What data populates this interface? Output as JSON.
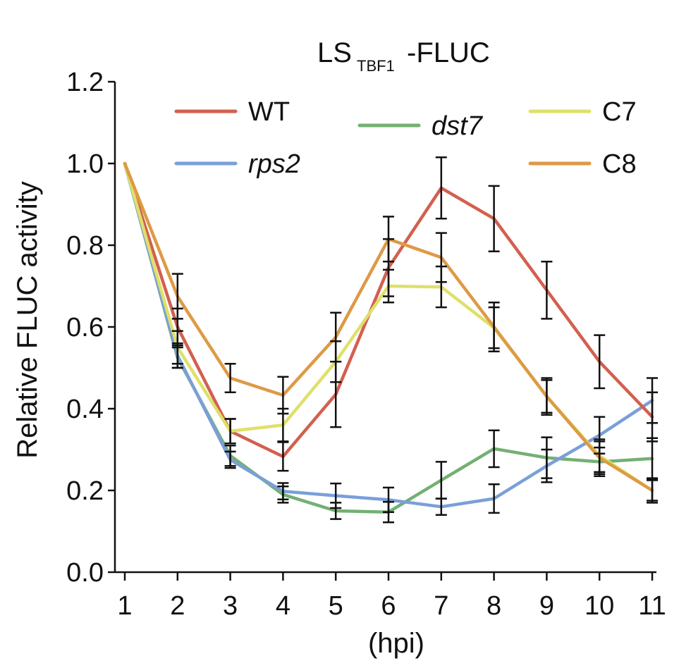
{
  "chart_data": {
    "type": "line",
    "title": {
      "main": "LS",
      "subscript": "TBF1",
      "suffix": "-FLUC"
    },
    "xlabel": "(hpi)",
    "ylabel": "Relative FLUC activity",
    "x": [
      1,
      2,
      3,
      4,
      5,
      6,
      7,
      8,
      9,
      10,
      11
    ],
    "x_ticks": [
      "1",
      "2",
      "3",
      "4",
      "5",
      "6",
      "7",
      "8",
      "9",
      "10",
      "11"
    ],
    "ylim": [
      0,
      1.2
    ],
    "y_ticks": [
      "0.0",
      "0.2",
      "0.4",
      "0.6",
      "0.8",
      "1.0",
      "1.2"
    ],
    "y_tick_values": [
      0,
      0.2,
      0.4,
      0.6,
      0.8,
      1.0,
      1.2
    ],
    "grid": false,
    "series": [
      {
        "name": "WT",
        "italic": false,
        "color": "#d2604f",
        "values": [
          1.0,
          0.6,
          0.345,
          0.283,
          0.435,
          0.745,
          0.94,
          0.865,
          0.69,
          0.515,
          0.38
        ],
        "errors": [
          0.0,
          0.045,
          0.03,
          0.035,
          0.08,
          0.07,
          0.075,
          0.08,
          0.07,
          0.065,
          0.06
        ]
      },
      {
        "name": "rps2",
        "italic": true,
        "color": "#7a9fd9",
        "values": [
          1.0,
          0.53,
          0.275,
          0.198,
          0.187,
          0.177,
          0.16,
          0.18,
          0.26,
          0.335,
          0.42
        ],
        "errors": [
          0.0,
          0.03,
          0.02,
          0.02,
          0.03,
          0.03,
          0.02,
          0.035,
          0.04,
          0.045,
          0.055
        ]
      },
      {
        "name": "dst7",
        "italic": true,
        "color": "#73b073",
        "values": [
          1.0,
          0.525,
          0.285,
          0.19,
          0.15,
          0.147,
          0.225,
          0.302,
          0.28,
          0.27,
          0.278
        ],
        "errors": [
          0.0,
          0.025,
          0.025,
          0.02,
          0.02,
          0.025,
          0.045,
          0.045,
          0.05,
          0.035,
          0.05
        ]
      },
      {
        "name": "C7",
        "italic": false,
        "color": "#dfe06a",
        "values": [
          1.0,
          0.55,
          0.345,
          0.36,
          0.515,
          0.7,
          0.698,
          0.598,
          0.43,
          0.285,
          0.2
        ],
        "errors": [
          0.0,
          0.04,
          0.03,
          0.04,
          0.05,
          0.04,
          0.05,
          0.05,
          0.04,
          0.04,
          0.025
        ]
      },
      {
        "name": "C8",
        "italic": false,
        "color": "#dd9a45",
        "values": [
          1.0,
          0.675,
          0.475,
          0.433,
          0.575,
          0.815,
          0.77,
          0.6,
          0.43,
          0.28,
          0.2
        ],
        "errors": [
          0.0,
          0.055,
          0.035,
          0.045,
          0.06,
          0.055,
          0.06,
          0.06,
          0.045,
          0.04,
          0.03
        ]
      }
    ],
    "legend_layout": [
      [
        "WT",
        "rps2"
      ],
      [
        "dst7"
      ],
      [
        "C7",
        "C8"
      ]
    ]
  }
}
